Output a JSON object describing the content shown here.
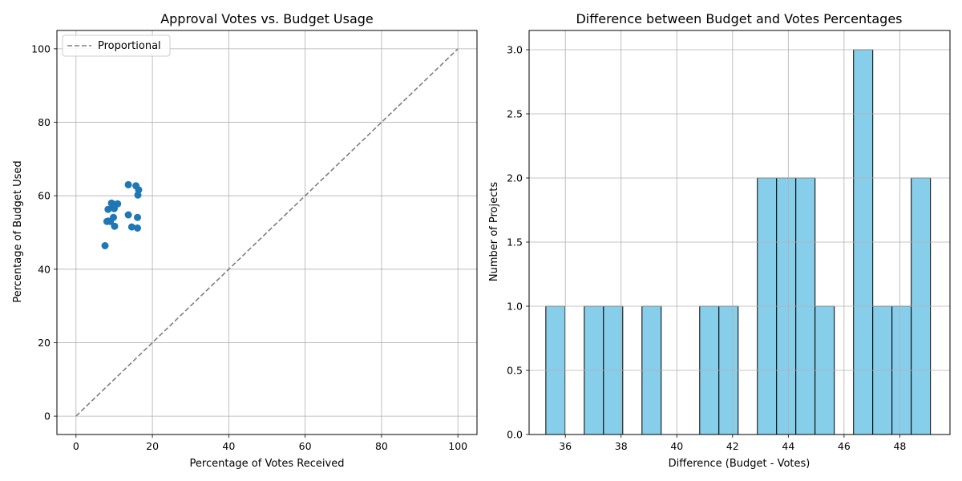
{
  "chart_data": [
    {
      "type": "scatter",
      "title": "Approval Votes vs. Budget Usage",
      "xlabel": "Percentage of Votes Received",
      "ylabel": "Percentage of Budget Used",
      "xlim": [
        -5,
        105
      ],
      "ylim": [
        -5,
        105
      ],
      "xticks": [
        0,
        20,
        40,
        60,
        80,
        100
      ],
      "yticks": [
        0,
        20,
        40,
        60,
        80,
        100
      ],
      "grid": true,
      "legend_position": "upper-left",
      "legend": [
        "Proportional"
      ],
      "series": [
        {
          "kind": "points",
          "color": "#1f77b4",
          "points": [
            [
              7.6,
              46.4
            ],
            [
              8.1,
              53.0
            ],
            [
              8.4,
              53.1
            ],
            [
              8.4,
              56.3
            ],
            [
              9.0,
              53.0
            ],
            [
              9.3,
              58.0
            ],
            [
              9.6,
              56.8
            ],
            [
              9.8,
              54.1
            ],
            [
              10.0,
              56.5
            ],
            [
              10.1,
              51.7
            ],
            [
              10.3,
              57.6
            ],
            [
              10.9,
              57.8
            ],
            [
              13.7,
              63.0
            ],
            [
              13.7,
              54.8
            ],
            [
              14.6,
              51.5
            ],
            [
              15.7,
              62.7
            ],
            [
              16.1,
              54.1
            ],
            [
              16.1,
              51.2
            ],
            [
              16.2,
              60.2
            ],
            [
              16.4,
              61.6
            ]
          ]
        },
        {
          "kind": "line",
          "name": "Proportional",
          "style": "dashed",
          "color": "#7f7f7f",
          "points": [
            [
              0,
              0
            ],
            [
              100,
              100
            ]
          ]
        }
      ]
    },
    {
      "type": "bar",
      "title": "Difference between Budget and Votes Percentages",
      "xlabel": "Difference (Budget - Votes)",
      "ylabel": "Number of Projects",
      "xlim": [
        34.7,
        49.8
      ],
      "ylim": [
        0,
        3.15
      ],
      "xticks": [
        36,
        38,
        40,
        42,
        44,
        46,
        48
      ],
      "yticks": [
        "0.0",
        "0.5",
        "1.0",
        "1.5",
        "2.0",
        "2.5",
        "3.0"
      ],
      "grid": true,
      "bar_color": "#87ceeb",
      "edge_color": "#000000",
      "bin_edges": [
        35.3,
        35.99,
        36.68,
        37.37,
        38.06,
        38.75,
        39.44,
        40.13,
        40.82,
        41.51,
        42.2,
        42.89,
        43.58,
        44.27,
        44.96,
        45.65,
        46.34,
        47.03,
        47.72,
        48.41,
        49.1
      ],
      "values": [
        1,
        0,
        1,
        1,
        0,
        1,
        0,
        0,
        1,
        1,
        0,
        2,
        2,
        2,
        1,
        0,
        3,
        1,
        1,
        2
      ]
    }
  ]
}
